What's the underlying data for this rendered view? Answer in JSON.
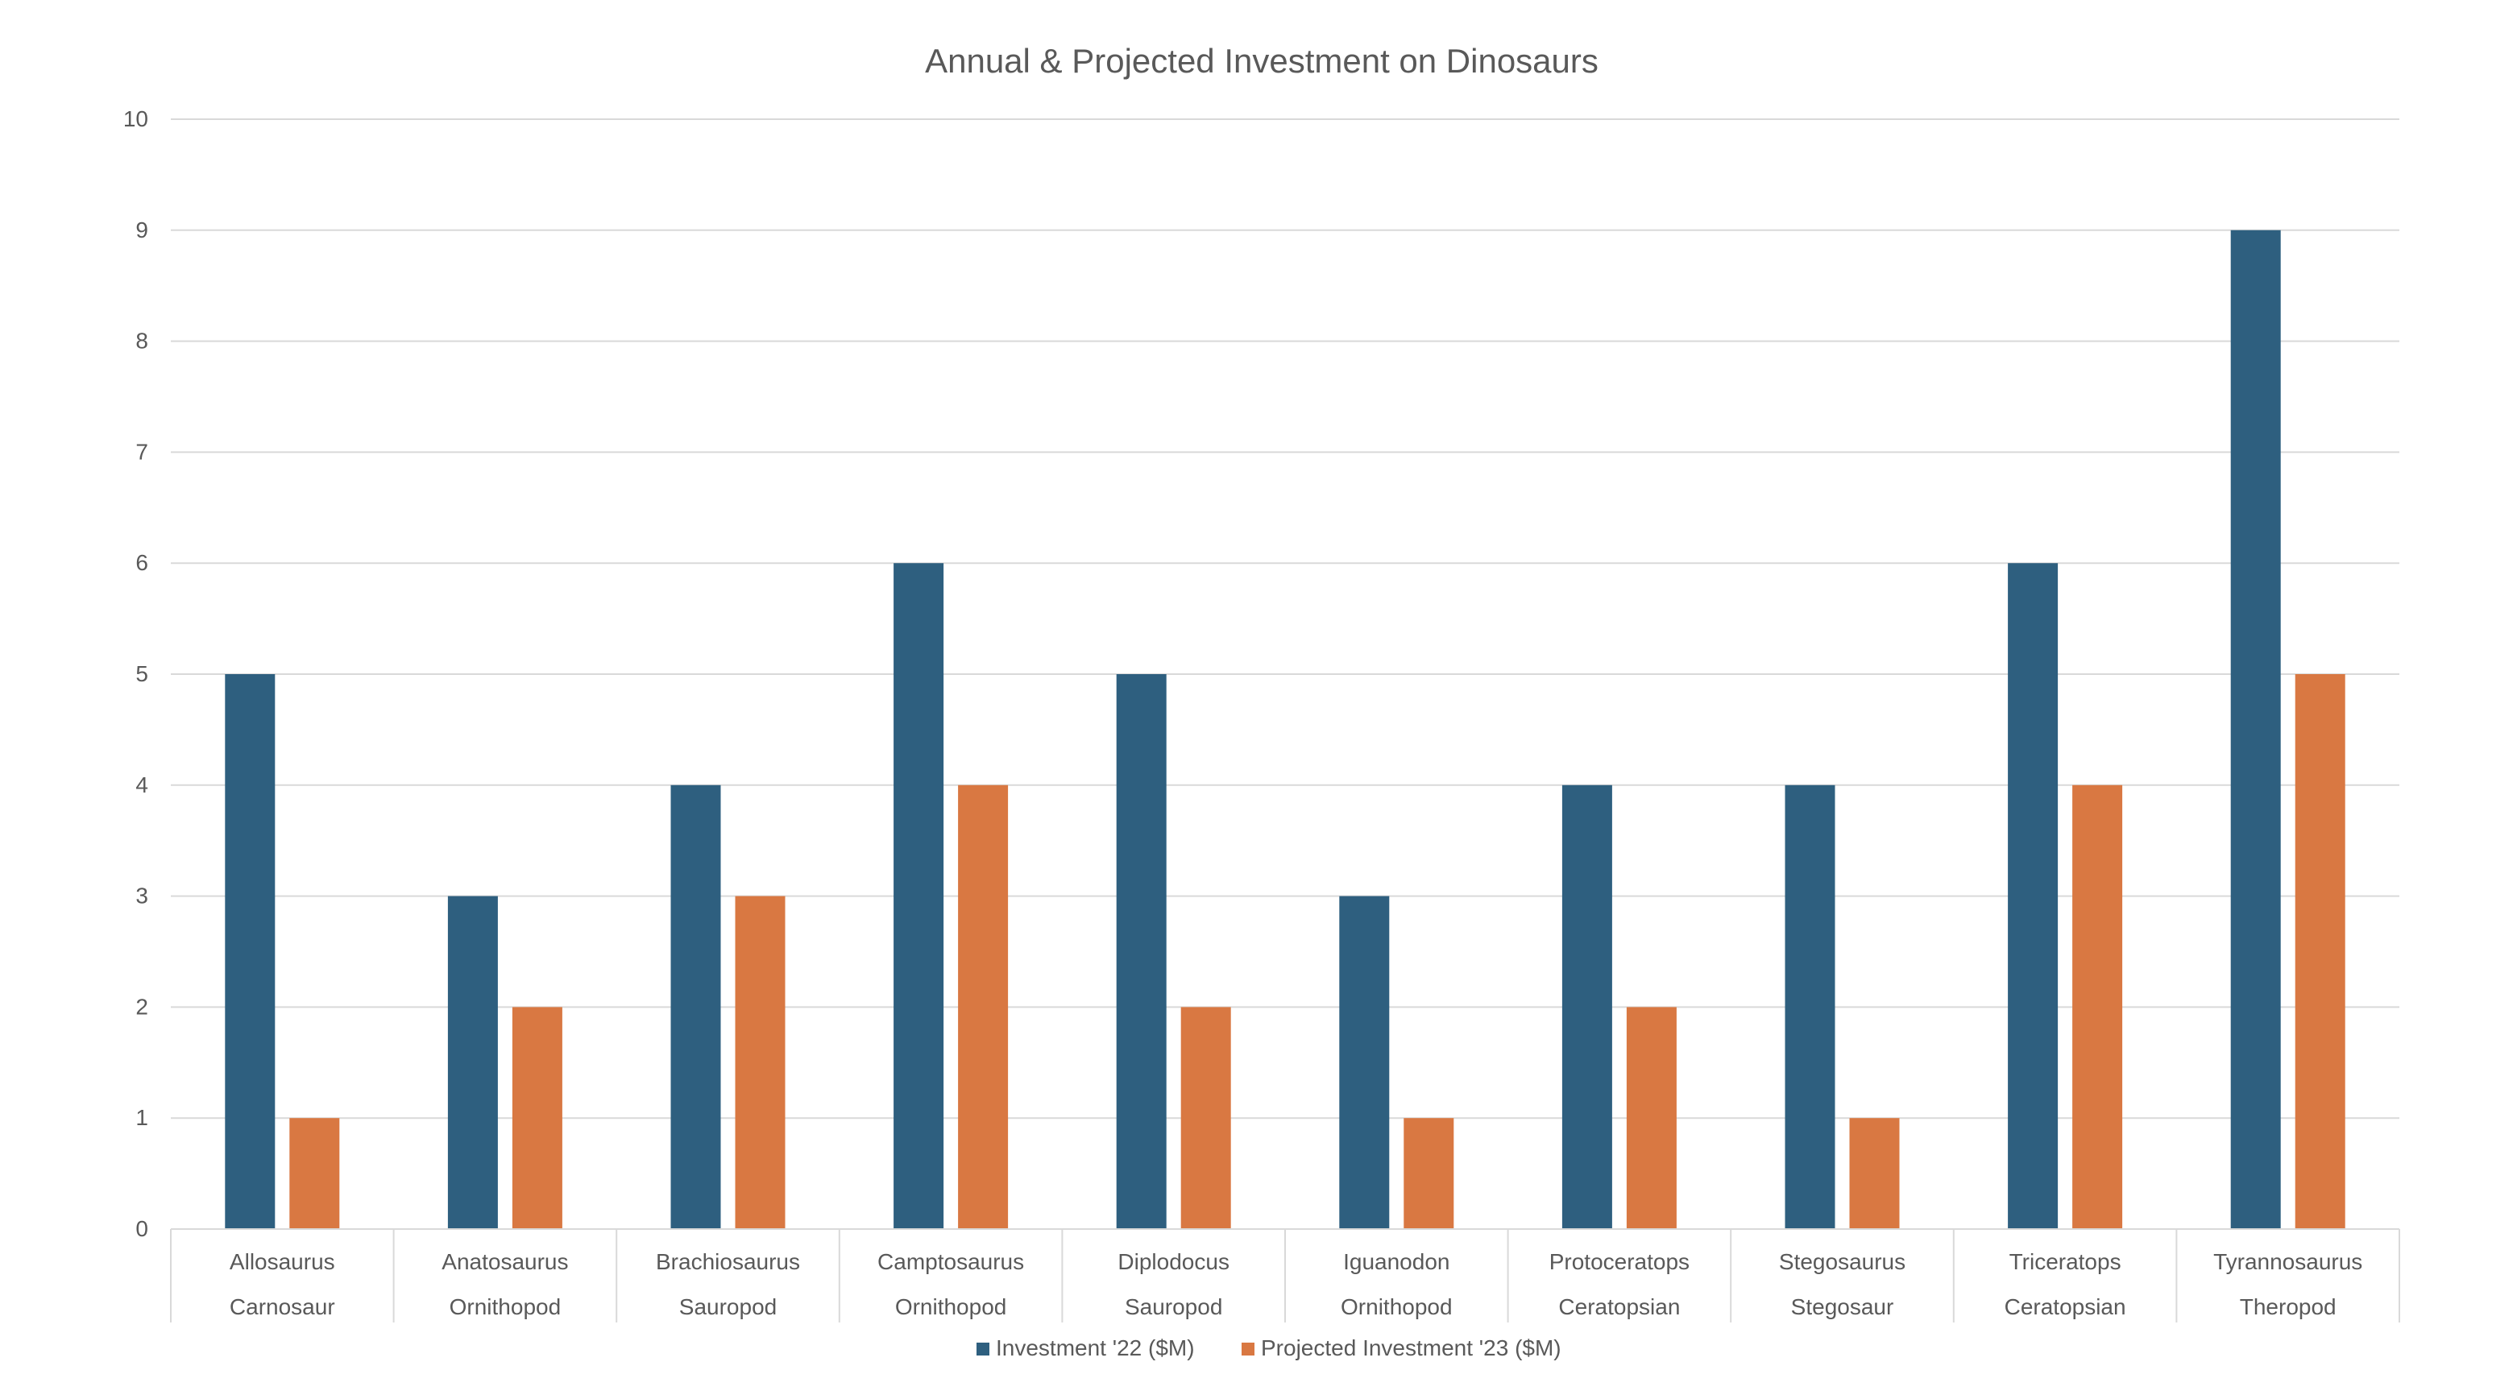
{
  "chart_data": {
    "type": "bar",
    "title": "Annual & Projected Investment on Dinosaurs",
    "categories": [
      {
        "name": "Allosaurus",
        "group": "Carnosaur"
      },
      {
        "name": "Anatosaurus",
        "group": "Ornithopod"
      },
      {
        "name": "Brachiosaurus",
        "group": "Sauropod"
      },
      {
        "name": "Camptosaurus",
        "group": "Ornithopod"
      },
      {
        "name": "Diplodocus",
        "group": "Sauropod"
      },
      {
        "name": "Iguanodon",
        "group": "Ornithopod"
      },
      {
        "name": "Protoceratops",
        "group": "Ceratopsian"
      },
      {
        "name": "Stegosaurus",
        "group": "Stegosaur"
      },
      {
        "name": "Triceratops",
        "group": "Ceratopsian"
      },
      {
        "name": "Tyrannosaurus",
        "group": "Theropod"
      }
    ],
    "series": [
      {
        "name": "Investment '22 ($M)",
        "color": "#2E5F7F",
        "values": [
          5,
          3,
          4,
          6,
          5,
          3,
          4,
          4,
          6,
          9
        ]
      },
      {
        "name": "Projected Investment '23 ($M)",
        "color": "#D97842",
        "values": [
          1,
          2,
          3,
          4,
          2,
          1,
          2,
          1,
          4,
          5
        ]
      }
    ],
    "ylim": [
      0,
      10
    ],
    "yticks": [
      "0",
      "1",
      "2",
      "3",
      "4",
      "5",
      "6",
      "7",
      "8",
      "9",
      "10"
    ],
    "grid": true,
    "legend": "bottom"
  }
}
